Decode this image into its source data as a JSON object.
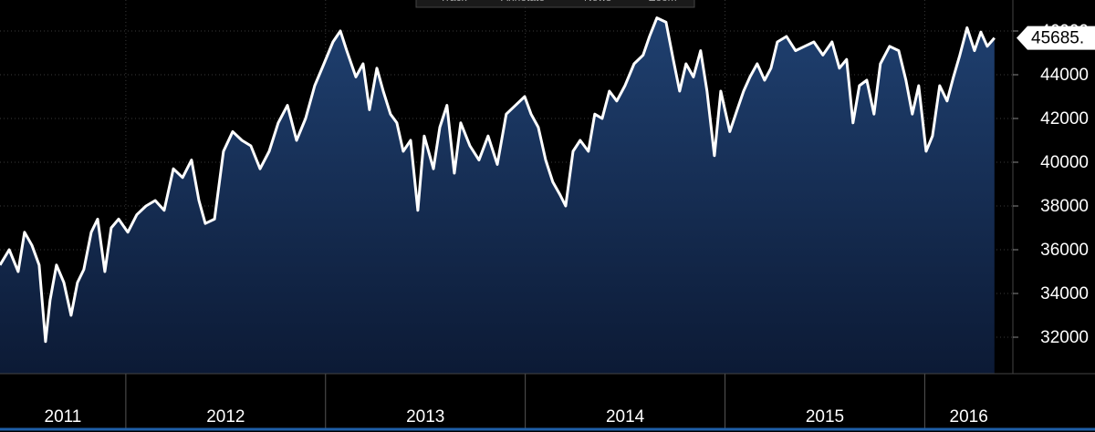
{
  "toolbar": [
    "Track",
    "Annotate",
    "News",
    "Zoom"
  ],
  "chart_data": {
    "type": "area",
    "color": "#ffffff",
    "x": [
      2011.37,
      2011.416,
      2011.461,
      2011.493,
      2011.53,
      2011.566,
      2011.598,
      2011.621,
      2011.653,
      2011.69,
      2011.726,
      2011.758,
      2011.79,
      2011.827,
      2011.859,
      2011.895,
      2011.927,
      2011.964,
      2012.01,
      2012.055,
      2012.101,
      2012.147,
      2012.192,
      2012.238,
      2012.284,
      2012.329,
      2012.366,
      2012.398,
      2012.444,
      2012.489,
      2012.535,
      2012.581,
      2012.626,
      2012.672,
      2012.718,
      2012.763,
      2012.809,
      2012.855,
      2012.9,
      2012.946,
      2012.992,
      2013.037,
      2013.074,
      2013.106,
      2013.152,
      2013.188,
      2013.22,
      2013.257,
      2013.289,
      2013.325,
      2013.357,
      2013.389,
      2013.426,
      2013.462,
      2013.494,
      2013.54,
      2013.572,
      2013.608,
      2013.645,
      2013.677,
      2013.723,
      2013.768,
      2013.814,
      2013.86,
      2013.905,
      2013.951,
      2013.997,
      2014.029,
      2014.065,
      2014.102,
      2014.138,
      2014.175,
      2014.202,
      2014.239,
      2014.275,
      2014.316,
      2014.348,
      2014.385,
      2014.421,
      2014.458,
      2014.499,
      2014.545,
      2014.59,
      2014.622,
      2014.659,
      2014.705,
      2014.741,
      2014.773,
      2014.805,
      2014.842,
      2014.878,
      2014.91,
      2014.947,
      2014.979,
      2015.024,
      2015.061,
      2015.093,
      2015.125,
      2015.161,
      2015.198,
      2015.23,
      2015.262,
      2015.308,
      2015.353,
      2015.399,
      2015.445,
      2015.49,
      2015.536,
      2015.573,
      2015.609,
      2015.641,
      2015.673,
      2015.71,
      2015.746,
      2015.778,
      2015.824,
      2015.87,
      2015.906,
      2015.938,
      2015.97,
      2016.007,
      2016.039,
      2016.075,
      2016.112,
      2016.144,
      2016.176,
      2016.212,
      2016.249,
      2016.281,
      2016.313,
      2016.349
    ],
    "values": [
      35300,
      36000,
      35000,
      36800,
      36200,
      35300,
      31800,
      33700,
      35300,
      34500,
      33000,
      34500,
      35100,
      36800,
      37400,
      35000,
      37000,
      37400,
      36800,
      37600,
      38000,
      38250,
      37800,
      39700,
      39300,
      40100,
      38250,
      37200,
      37400,
      40500,
      41400,
      41000,
      40750,
      39700,
      40500,
      41800,
      42600,
      41000,
      42000,
      43500,
      44500,
      45500,
      46000,
      45100,
      43900,
      44500,
      42400,
      44300,
      43250,
      42200,
      41800,
      40500,
      41000,
      37800,
      41200,
      39700,
      41600,
      42600,
      39500,
      41800,
      40750,
      40100,
      41200,
      39900,
      42200,
      42600,
      43000,
      42200,
      41600,
      40100,
      39100,
      38500,
      38000,
      40500,
      41000,
      40500,
      42200,
      42000,
      43250,
      42800,
      43500,
      44500,
      44900,
      45750,
      46600,
      46400,
      44700,
      43250,
      44500,
      43900,
      45100,
      43250,
      40300,
      43250,
      41400,
      42400,
      43250,
      43900,
      44500,
      43750,
      44300,
      45500,
      45750,
      45100,
      45300,
      45500,
      44900,
      45500,
      44300,
      44700,
      41800,
      43500,
      43750,
      42200,
      44500,
      45300,
      45100,
      43750,
      42200,
      43500,
      40500,
      41200,
      43500,
      42800,
      43900,
      44900,
      46150,
      45100,
      45950,
      45300,
      45685
    ],
    "last_value_label": "45685.",
    "xlim": [
      2011.37,
      2016.35
    ],
    "xticks": [
      2012,
      2013,
      2014,
      2015,
      2016
    ],
    "x_labels": [
      "2011",
      "2012",
      "2013",
      "2014",
      "2015",
      "2016"
    ],
    "ylim": [
      30333,
      47417
    ],
    "yticks": [
      32000,
      34000,
      36000,
      38000,
      40000,
      42000,
      44000,
      46000
    ],
    "grid": true
  }
}
